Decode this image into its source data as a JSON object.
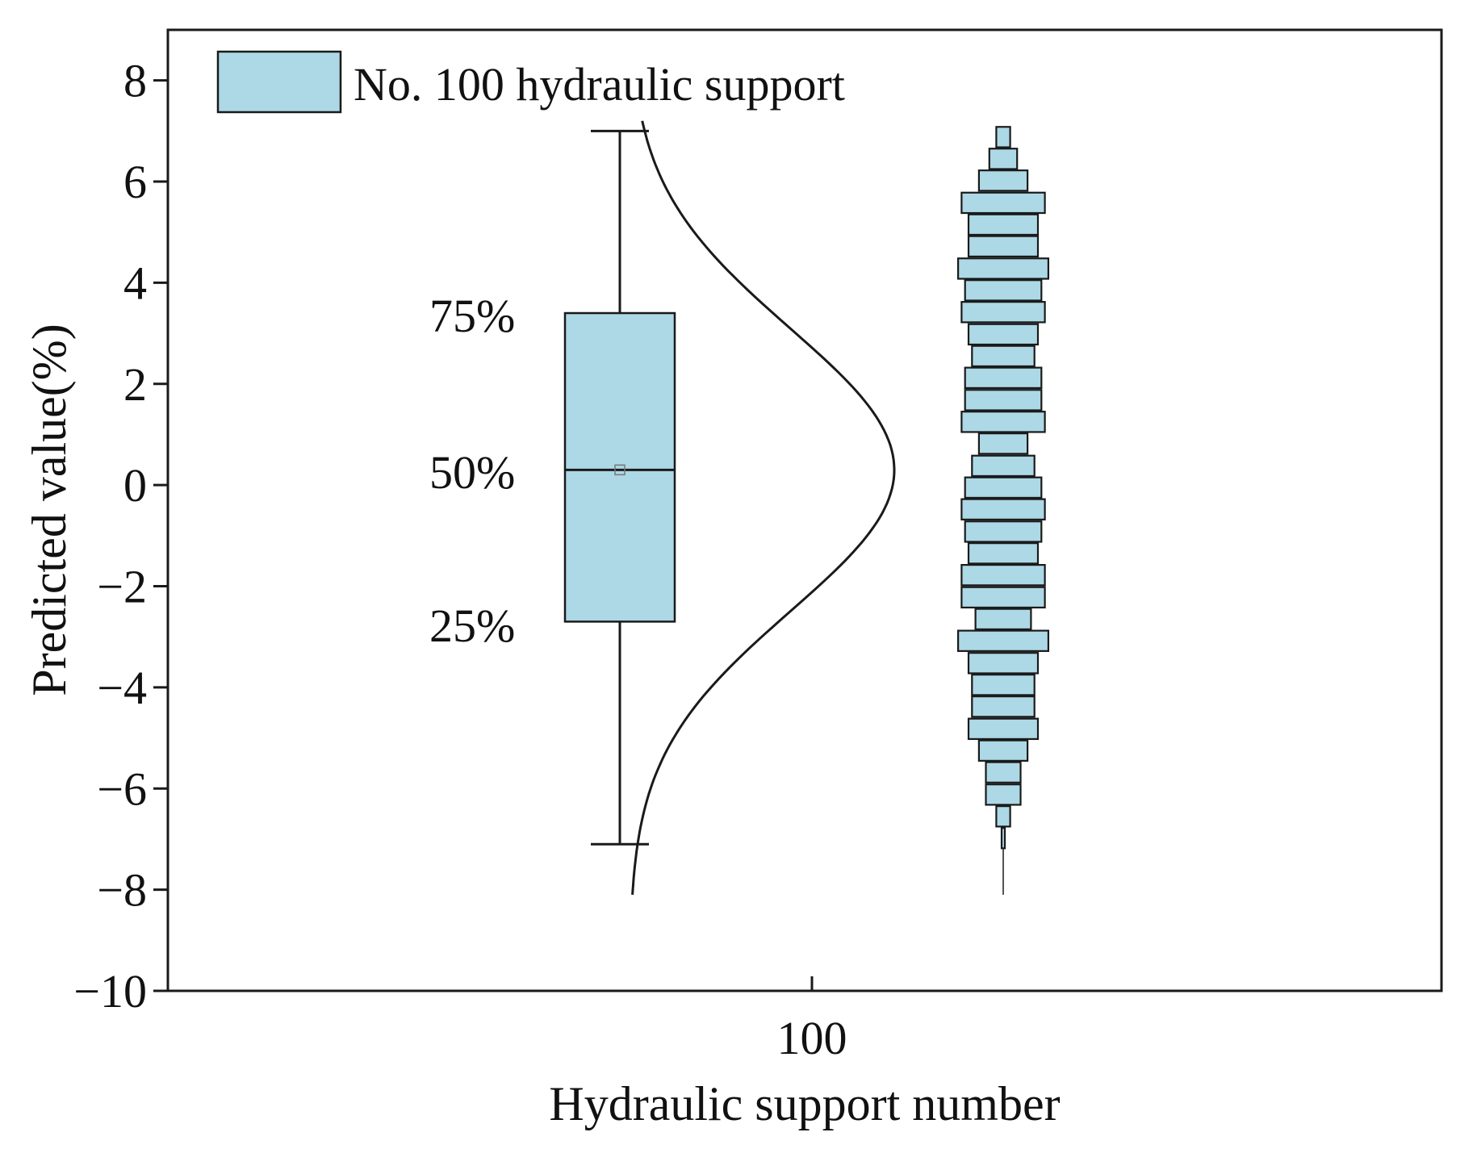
{
  "colors": {
    "fill": "#add8e6",
    "stroke": "#1a1a1a",
    "background": "#ffffff"
  },
  "chart_data": {
    "type": "box-histogram",
    "xlabel": "Hydraulic support number",
    "ylabel": "Predicted value(%)",
    "categories": [
      "100"
    ],
    "ylim": [
      -10,
      9
    ],
    "yticks": [
      8,
      6,
      4,
      2,
      0,
      -2,
      -4,
      -6,
      -8,
      -10
    ],
    "ytick_labels": [
      "8",
      "6",
      "4",
      "2",
      "0",
      "−2",
      "−4",
      "−6",
      "−8",
      "−10"
    ],
    "legend": {
      "label": "No. 100 hydraulic support",
      "position": "top-left"
    },
    "box": {
      "whisker_high": 7.0,
      "q3": 3.4,
      "median": 0.3,
      "mean": 0.3,
      "q1": -2.7,
      "whisker_low": -7.1
    },
    "percentile_labels": [
      "75%",
      "50%",
      "25%"
    ],
    "normal_curve": {
      "mean": 0.3,
      "sd": 2.8,
      "range": [
        -8.1,
        7.2
      ]
    },
    "histogram": {
      "bin_width": 0.435,
      "bins": [
        {
          "center": 6.88,
          "count": 2
        },
        {
          "center": 6.45,
          "count": 4
        },
        {
          "center": 6.02,
          "count": 7
        },
        {
          "center": 5.58,
          "count": 12
        },
        {
          "center": 5.15,
          "count": 10
        },
        {
          "center": 4.72,
          "count": 10
        },
        {
          "center": 4.28,
          "count": 13
        },
        {
          "center": 3.85,
          "count": 11
        },
        {
          "center": 3.42,
          "count": 12
        },
        {
          "center": 2.98,
          "count": 10
        },
        {
          "center": 2.55,
          "count": 9
        },
        {
          "center": 2.12,
          "count": 11
        },
        {
          "center": 1.68,
          "count": 11
        },
        {
          "center": 1.25,
          "count": 12
        },
        {
          "center": 0.82,
          "count": 7
        },
        {
          "center": 0.38,
          "count": 9
        },
        {
          "center": -0.05,
          "count": 11
        },
        {
          "center": -0.48,
          "count": 12
        },
        {
          "center": -0.92,
          "count": 11
        },
        {
          "center": -1.35,
          "count": 10
        },
        {
          "center": -1.78,
          "count": 12
        },
        {
          "center": -2.22,
          "count": 12
        },
        {
          "center": -2.65,
          "count": 8
        },
        {
          "center": -3.08,
          "count": 13
        },
        {
          "center": -3.52,
          "count": 10
        },
        {
          "center": -3.95,
          "count": 9
        },
        {
          "center": -4.38,
          "count": 9
        },
        {
          "center": -4.82,
          "count": 10
        },
        {
          "center": -5.25,
          "count": 7
        },
        {
          "center": -5.68,
          "count": 5
        },
        {
          "center": -6.12,
          "count": 5
        },
        {
          "center": -6.55,
          "count": 2
        },
        {
          "center": -6.98,
          "count": 0.4
        }
      ],
      "tail_low": -8.1
    }
  }
}
